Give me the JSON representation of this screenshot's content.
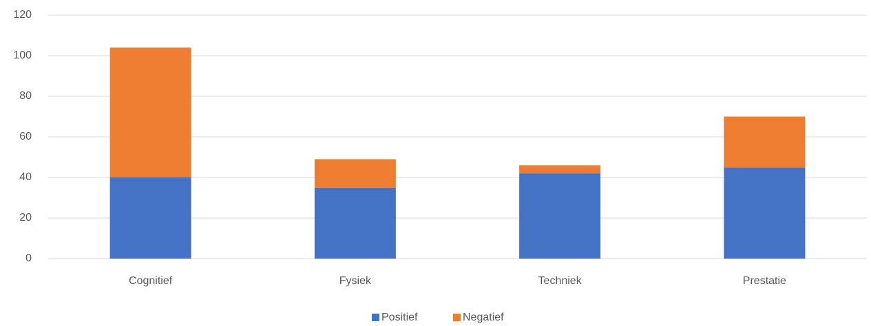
{
  "chart_data": {
    "type": "stacked_bar",
    "categories": [
      "Cognitief",
      "Fysiek",
      "Techniek",
      "Prestatie"
    ],
    "series": [
      {
        "name": "Positief",
        "color": "#4472c4",
        "values": [
          40,
          35,
          42,
          45
        ]
      },
      {
        "name": "Negatief",
        "color": "#ed7d31",
        "values": [
          64,
          14,
          4,
          25
        ]
      }
    ],
    "ylim": [
      0,
      120
    ],
    "yticks": [
      0,
      20,
      40,
      60,
      80,
      100,
      120
    ],
    "grid": true,
    "legend": "bottom"
  }
}
